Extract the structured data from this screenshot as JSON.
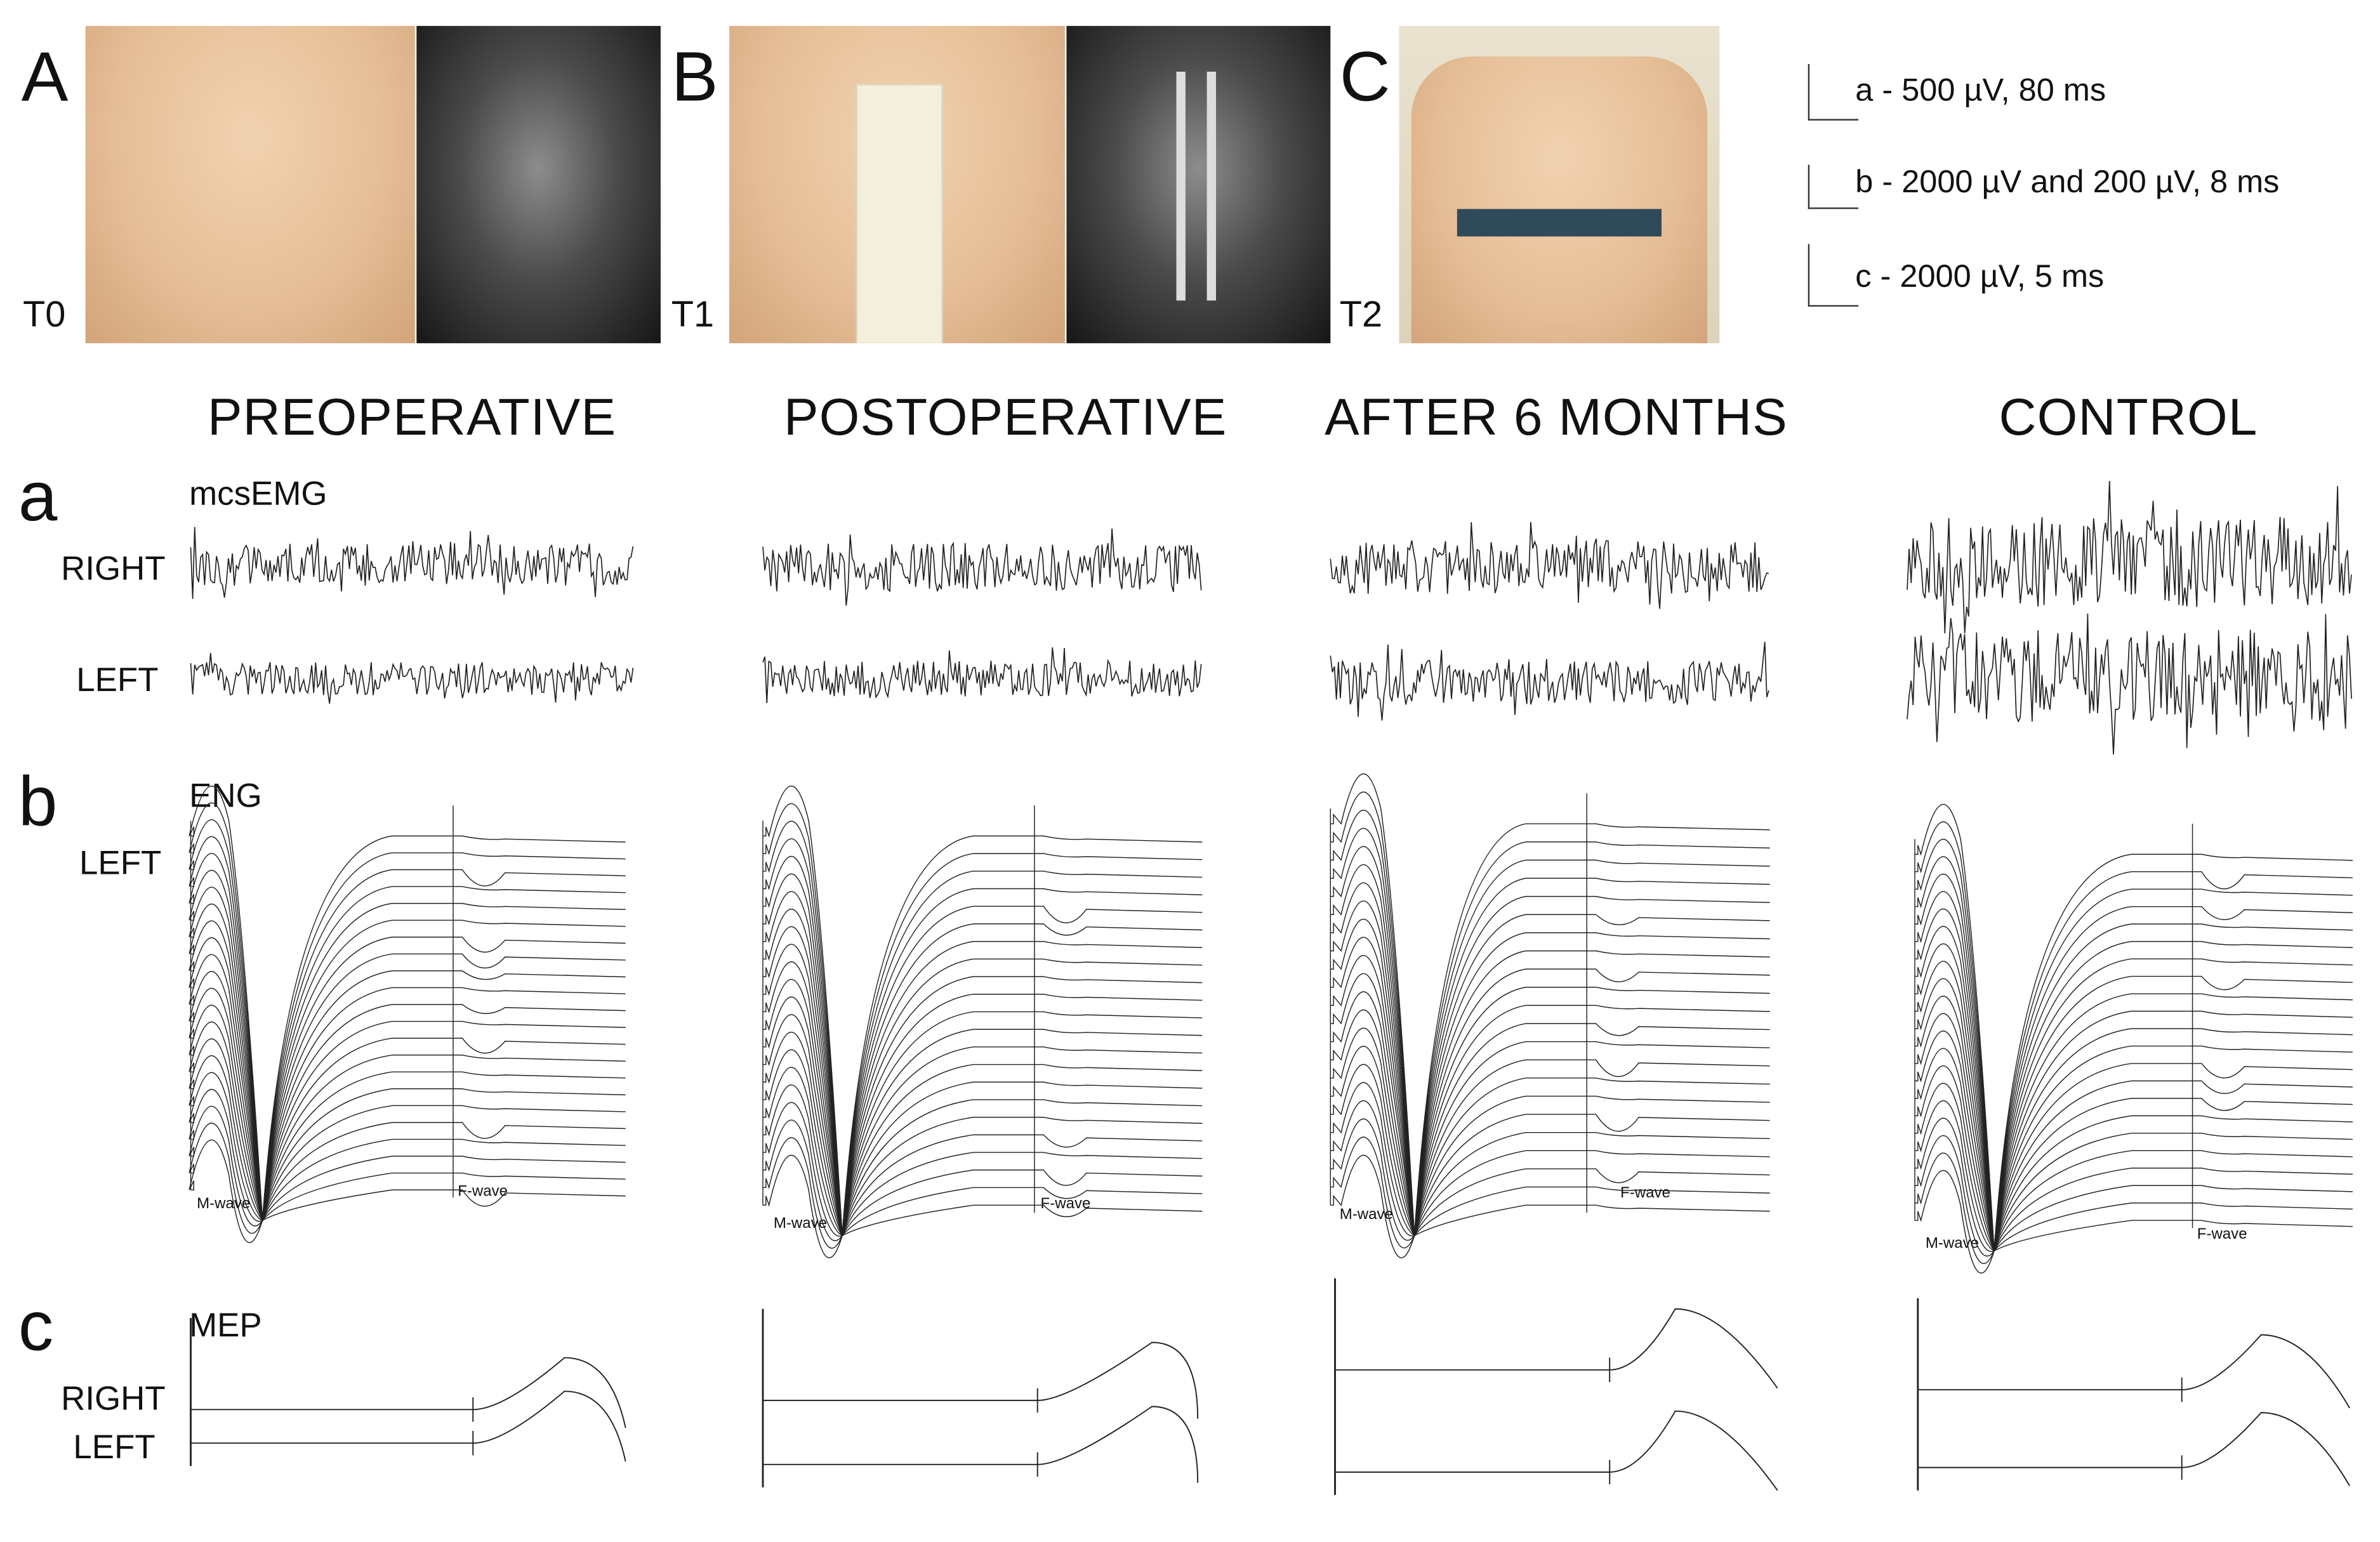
{
  "panels": [
    {
      "letter": "A",
      "timepoint": "T0"
    },
    {
      "letter": "B",
      "timepoint": "T1"
    },
    {
      "letter": "C",
      "timepoint": "T2"
    }
  ],
  "scale_legend": [
    {
      "text": "a - 500 µV, 80 ms"
    },
    {
      "text": "b - 2000 µV and 200 µV, 8 ms"
    },
    {
      "text": "c - 2000 µV, 5 ms"
    }
  ],
  "columns": [
    "PREOPERATIVE",
    "POSTOPERATIVE",
    "AFTER 6 MONTHS",
    "CONTROL"
  ],
  "rows": {
    "a": {
      "letter": "a",
      "title": "mcsEMG",
      "right": "RIGHT",
      "left": "LEFT"
    },
    "b": {
      "letter": "b",
      "title": "ENG",
      "left": "LEFT",
      "m_wave": "M-wave",
      "f_wave": "F-wave"
    },
    "c": {
      "letter": "c",
      "title": "MEP",
      "right": "RIGHT",
      "left": "LEFT"
    }
  },
  "colors": {
    "trace": "#222222",
    "skin": "#e6bf98",
    "xray": "#4b4b4b"
  }
}
